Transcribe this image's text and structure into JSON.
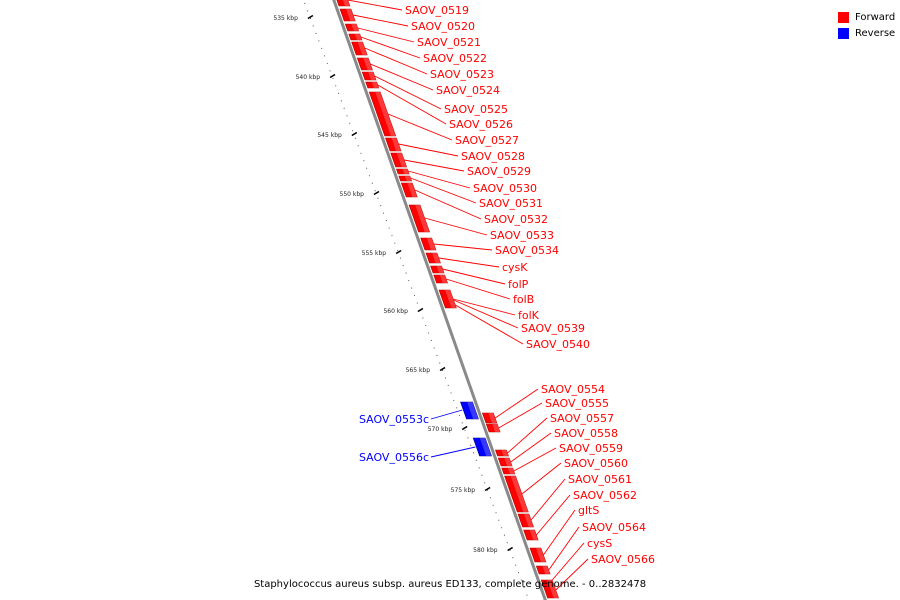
{
  "legend": {
    "forward_label": "Forward",
    "reverse_label": "Reverse",
    "forward_color": "#ff0000",
    "reverse_color": "#0000ff"
  },
  "caption": "Staphylococcus aureus subsp. aureus ED133, complete genome. - 0..2832478",
  "ticks": [
    "535 kbp",
    "540 kbp",
    "545 kbp",
    "550 kbp",
    "555 kbp",
    "560 kbp",
    "565 kbp",
    "570 kbp",
    "575 kbp",
    "580 kbp"
  ],
  "forward_genes": [
    "SAOV_0519",
    "SAOV_0520",
    "SAOV_0521",
    "SAOV_0522",
    "SAOV_0523",
    "SAOV_0524",
    "SAOV_0525",
    "SAOV_0526",
    "SAOV_0527",
    "SAOV_0528",
    "SAOV_0529",
    "SAOV_0530",
    "SAOV_0531",
    "SAOV_0532",
    "SAOV_0533",
    "SAOV_0534",
    "cysK",
    "folP",
    "folB",
    "folK",
    "SAOV_0539",
    "SAOV_0540",
    "SAOV_0554",
    "SAOV_0555",
    "SAOV_0557",
    "SAOV_0558",
    "SAOV_0559",
    "SAOV_0560",
    "SAOV_0561",
    "SAOV_0562",
    "gltS",
    "SAOV_0564",
    "cysS",
    "SAOV_0566"
  ],
  "reverse_genes": [
    "SAOV_0553c",
    "SAOV_0556c"
  ]
}
